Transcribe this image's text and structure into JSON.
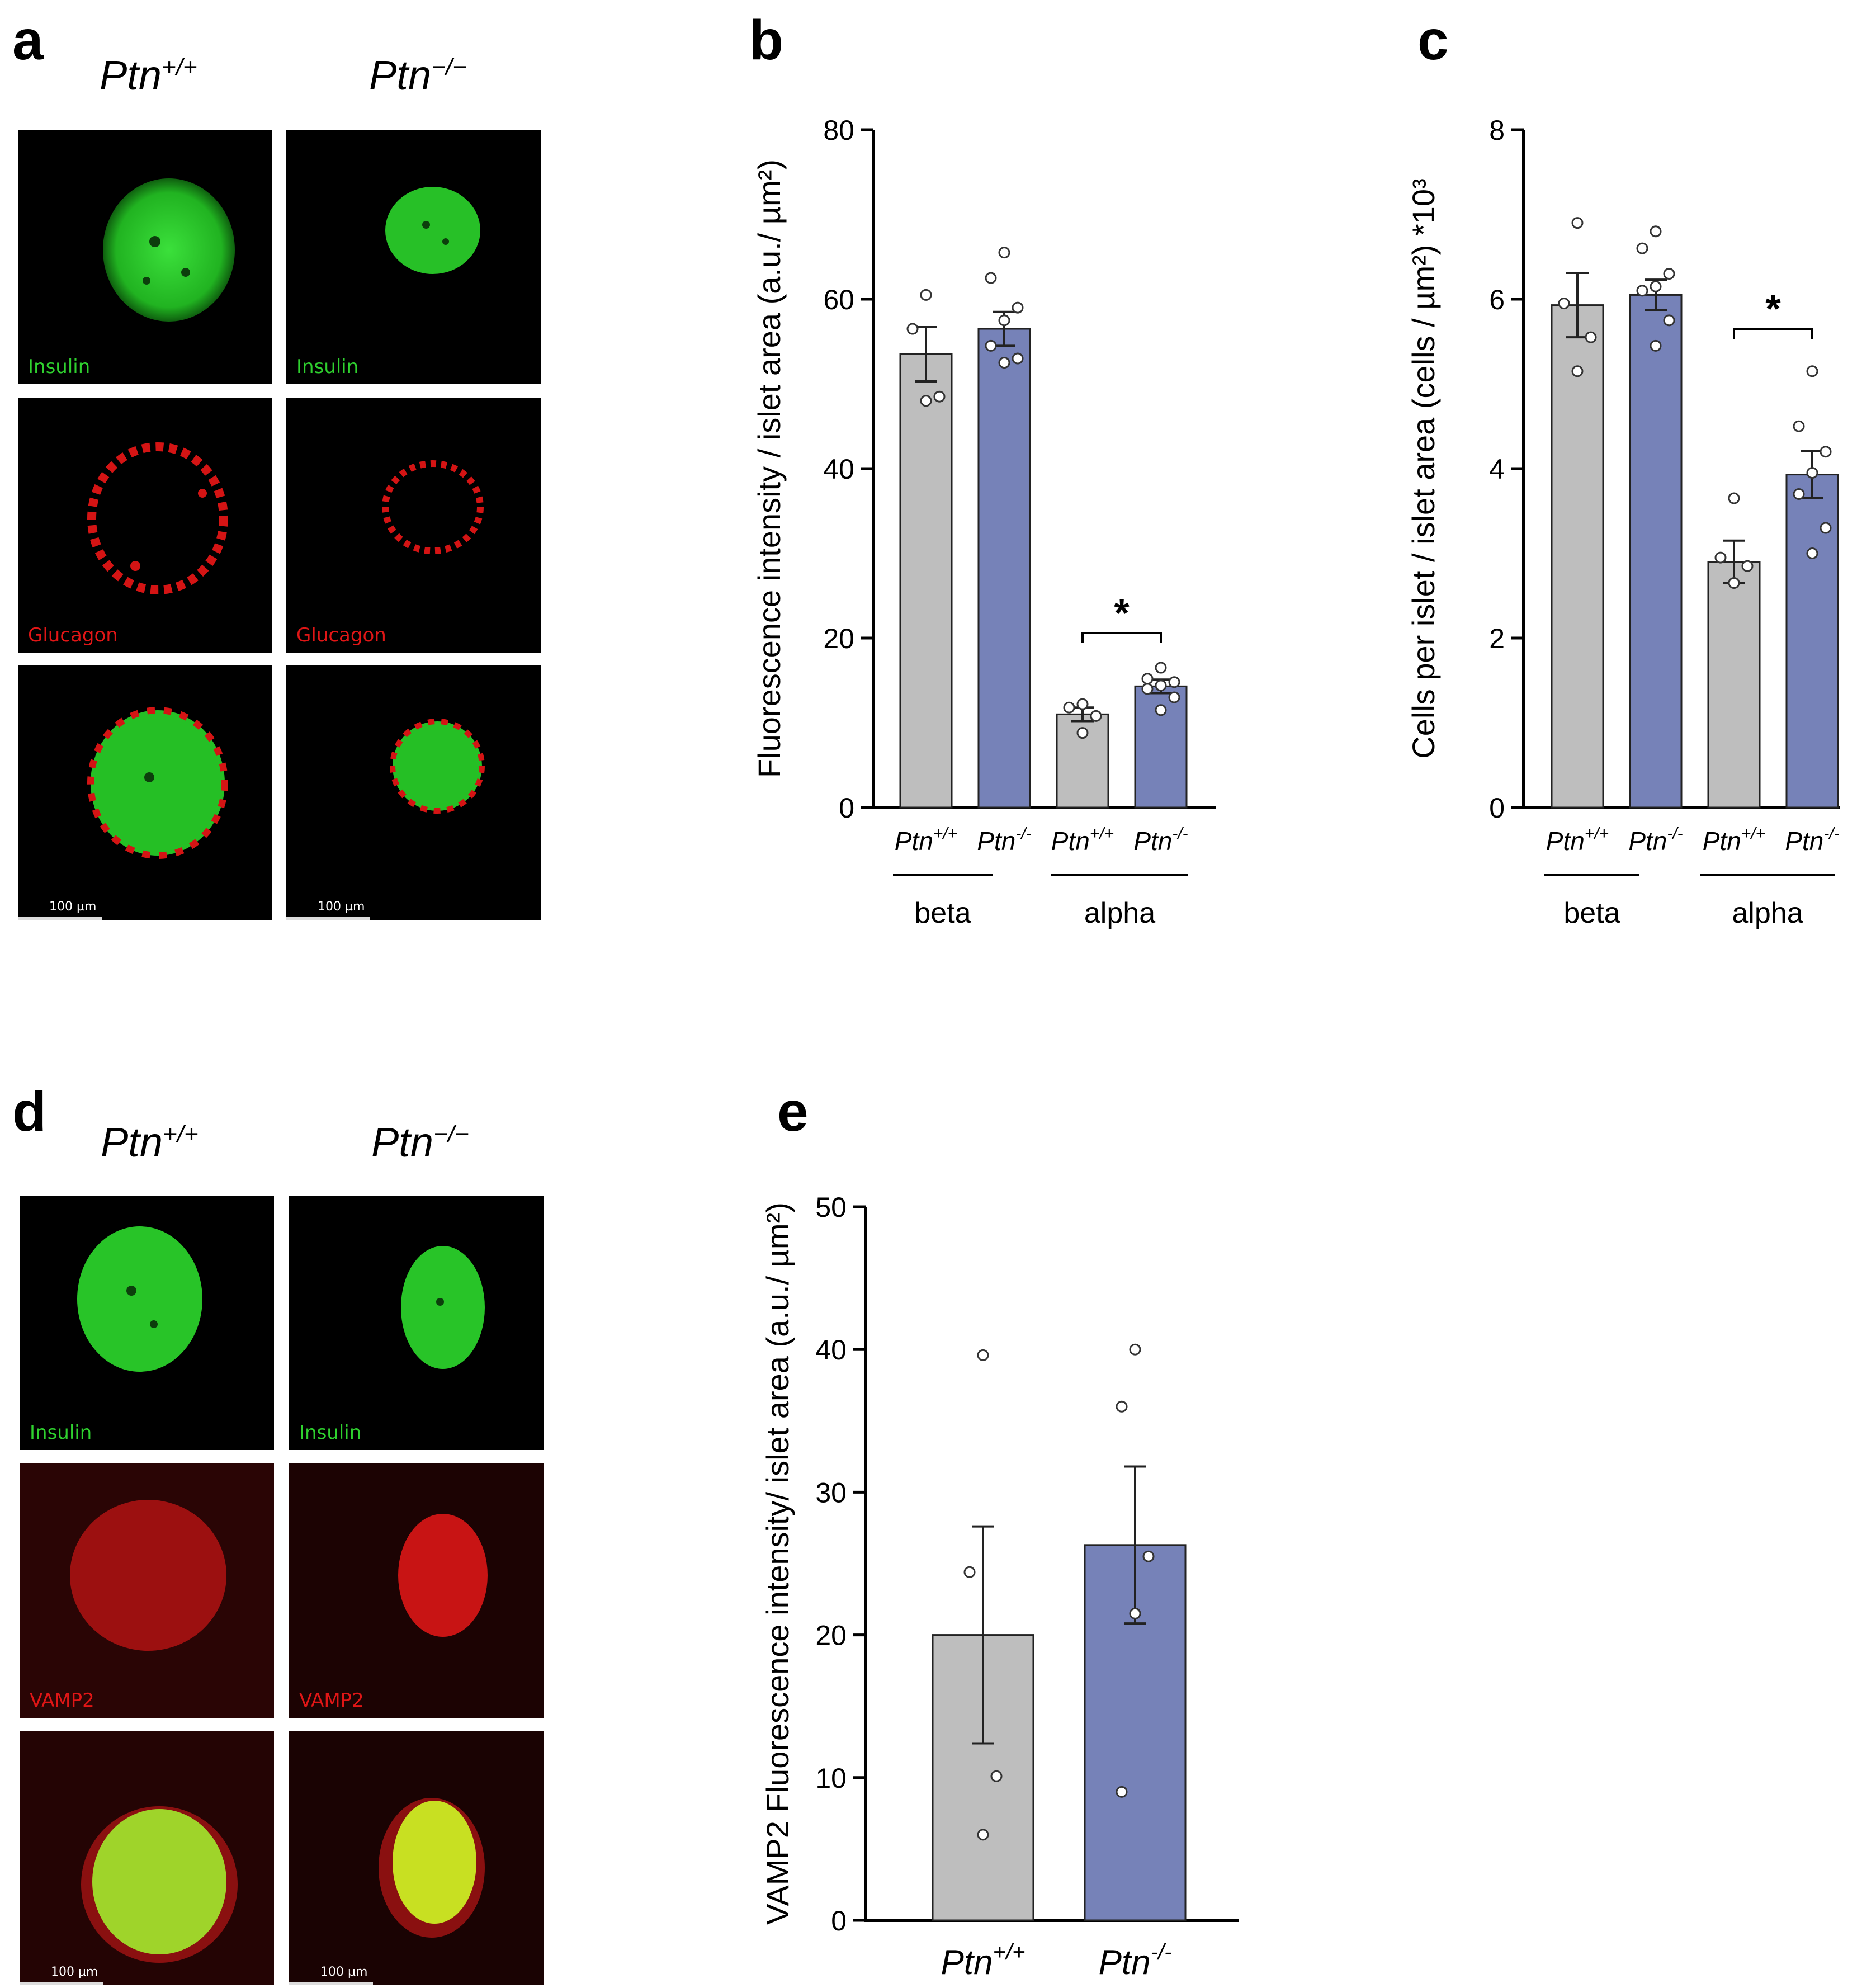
{
  "panels": {
    "a": {
      "letter": "a",
      "columns": [
        {
          "base": "Ptn",
          "sup": "+/+"
        },
        {
          "base": "Ptn",
          "sup": "−/−"
        }
      ],
      "rows": [
        {
          "label": "Insulin",
          "color": "green"
        },
        {
          "label": "Glucagon",
          "color": "red"
        },
        {
          "label": "",
          "color": "merge"
        }
      ],
      "scale_bar": "100 µm"
    },
    "b": {
      "letter": "b"
    },
    "c": {
      "letter": "c"
    },
    "d": {
      "letter": "d",
      "columns": [
        {
          "base": "Ptn",
          "sup": "+/+"
        },
        {
          "base": "Ptn",
          "sup": "−/−"
        }
      ],
      "rows": [
        {
          "label": "Insulin",
          "color": "green"
        },
        {
          "label": "VAMP2",
          "color": "red"
        },
        {
          "label": "",
          "color": "merge"
        }
      ],
      "scale_bar": "100 µm"
    },
    "e": {
      "letter": "e"
    }
  },
  "colors": {
    "wildtype": "#bebebe",
    "knockout": "#7682b8",
    "insulin": "#2fd12f",
    "glucagon": "#e01616"
  },
  "chart_data": [
    {
      "panel": "b",
      "type": "bar",
      "ylabel": "Fluorescence intensity / islet area (a.u./ µm²)",
      "ylim": [
        0,
        80
      ],
      "yticks": [
        0,
        20,
        40,
        60,
        80
      ],
      "tick_labels": [
        {
          "base": "Ptn",
          "sup": "+/+"
        },
        {
          "base": "Ptn",
          "sup": "-/-"
        },
        {
          "base": "Ptn",
          "sup": "+/+"
        },
        {
          "base": "Ptn",
          "sup": "-/-"
        }
      ],
      "groups": [
        "beta",
        "alpha"
      ],
      "bars": [
        {
          "group": "beta",
          "genotype": "Ptn+/+",
          "mean": 53.5,
          "sem": 3.2,
          "points": [
            60.5,
            56.5,
            48.5,
            48.0
          ]
        },
        {
          "group": "beta",
          "genotype": "Ptn-/-",
          "mean": 56.5,
          "sem": 2.0,
          "points": [
            65.5,
            62.5,
            59.0,
            57.5,
            54.5,
            53.0,
            52.5
          ]
        },
        {
          "group": "alpha",
          "genotype": "Ptn+/+",
          "mean": 11.0,
          "sem": 0.8,
          "points": [
            12.2,
            11.8,
            10.8,
            8.8
          ]
        },
        {
          "group": "alpha",
          "genotype": "Ptn-/-",
          "mean": 14.3,
          "sem": 0.8,
          "points": [
            16.5,
            15.2,
            14.8,
            14.4,
            14.0,
            13.0,
            11.5
          ]
        }
      ],
      "significance": [
        {
          "between": [
            2,
            3
          ],
          "label": "*"
        }
      ]
    },
    {
      "panel": "c",
      "type": "bar",
      "ylabel": "Cells per islet / islet area (cells / µm²) *10³",
      "ylim": [
        0,
        8
      ],
      "yticks": [
        0,
        2,
        4,
        6,
        8
      ],
      "tick_labels": [
        {
          "base": "Ptn",
          "sup": "+/+"
        },
        {
          "base": "Ptn",
          "sup": "-/-"
        },
        {
          "base": "Ptn",
          "sup": "+/+"
        },
        {
          "base": "Ptn",
          "sup": "-/-"
        }
      ],
      "groups": [
        "beta",
        "alpha"
      ],
      "bars": [
        {
          "group": "beta",
          "genotype": "Ptn+/+",
          "mean": 5.93,
          "sem": 0.38,
          "points": [
            6.9,
            5.95,
            5.55,
            5.15
          ]
        },
        {
          "group": "beta",
          "genotype": "Ptn-/-",
          "mean": 6.05,
          "sem": 0.18,
          "points": [
            6.8,
            6.6,
            6.3,
            6.15,
            6.1,
            5.75,
            5.45
          ]
        },
        {
          "group": "alpha",
          "genotype": "Ptn+/+",
          "mean": 2.9,
          "sem": 0.25,
          "points": [
            3.65,
            2.95,
            2.85,
            2.65
          ]
        },
        {
          "group": "alpha",
          "genotype": "Ptn-/-",
          "mean": 3.93,
          "sem": 0.28,
          "points": [
            5.15,
            4.5,
            4.2,
            3.95,
            3.7,
            3.3,
            3.0
          ]
        }
      ],
      "significance": [
        {
          "between": [
            2,
            3
          ],
          "label": "*"
        }
      ]
    },
    {
      "panel": "e",
      "type": "bar",
      "ylabel": "VAMP2 Fluorescence intensity/ islet area (a.u./ µm²)",
      "ylim": [
        0,
        50
      ],
      "yticks": [
        0,
        10,
        20,
        30,
        40,
        50
      ],
      "tick_labels": [
        {
          "base": "Ptn",
          "sup": "+/+"
        },
        {
          "base": "Ptn",
          "sup": "-/-"
        }
      ],
      "groups": [],
      "bars": [
        {
          "genotype": "Ptn+/+",
          "mean": 20.0,
          "sem": 7.6,
          "points": [
            39.6,
            24.4,
            10.1,
            6.0
          ]
        },
        {
          "genotype": "Ptn-/-",
          "mean": 26.3,
          "sem": 5.5,
          "points": [
            40.0,
            36.0,
            25.5,
            21.5,
            9.0
          ]
        }
      ],
      "significance": []
    }
  ]
}
